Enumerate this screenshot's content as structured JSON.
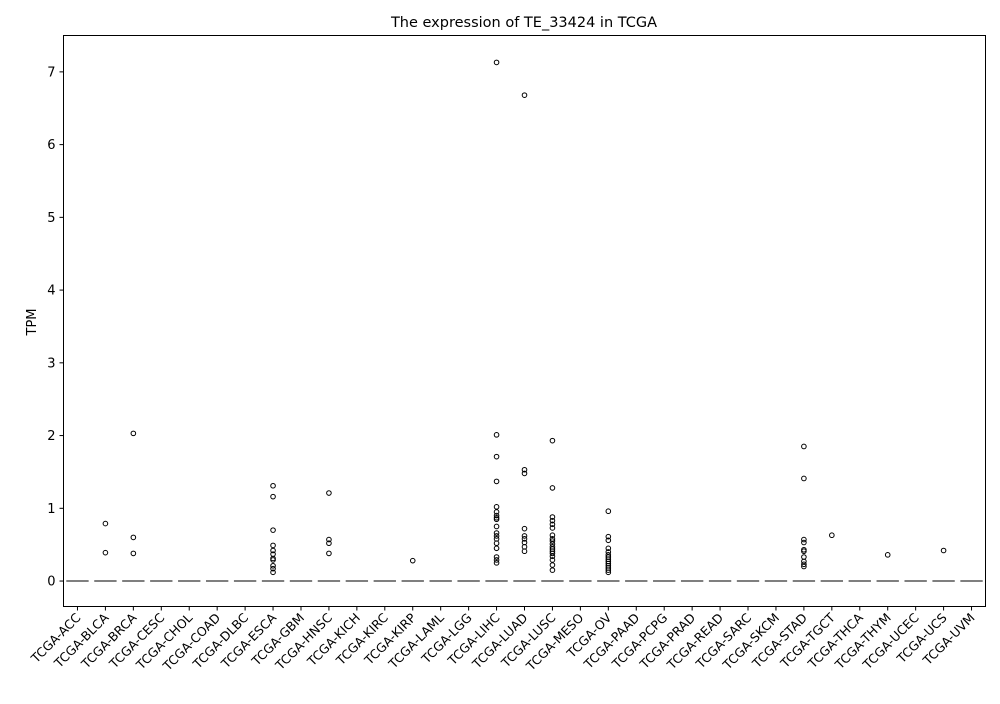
{
  "chart_data": {
    "type": "box",
    "title": "The expression of TE_33424 in TCGA",
    "xlabel": "",
    "ylabel": "TPM",
    "ylim": [
      -0.35,
      7.5
    ],
    "yticks": [
      0,
      1,
      2,
      3,
      4,
      5,
      6,
      7
    ],
    "grid": false,
    "legend": "none",
    "categories": [
      "TCGA-ACC",
      "TCGA-BLCA",
      "TCGA-BRCA",
      "TCGA-CESC",
      "TCGA-CHOL",
      "TCGA-COAD",
      "TCGA-DLBC",
      "TCGA-ESCA",
      "TCGA-GBM",
      "TCGA-HNSC",
      "TCGA-KICH",
      "TCGA-KIRC",
      "TCGA-KIRP",
      "TCGA-LAML",
      "TCGA-LGG",
      "TCGA-LIHC",
      "TCGA-LUAD",
      "TCGA-LUSC",
      "TCGA-MESO",
      "TCGA-OV",
      "TCGA-PAAD",
      "TCGA-PCPG",
      "TCGA-PRAD",
      "TCGA-READ",
      "TCGA-SARC",
      "TCGA-SKCM",
      "TCGA-STAD",
      "TCGA-TGCT",
      "TCGA-THCA",
      "TCGA-THYM",
      "TCGA-UCEC",
      "TCGA-UCS",
      "TCGA-UVM"
    ],
    "median": 0,
    "outliers": {
      "TCGA-BLCA": [
        0.79,
        0.39
      ],
      "TCGA-BRCA": [
        2.03,
        0.6,
        0.38
      ],
      "TCGA-ESCA": [
        1.31,
        1.16,
        0.7,
        0.49,
        0.42,
        0.37,
        0.31,
        0.29,
        0.21,
        0.17,
        0.12
      ],
      "TCGA-HNSC": [
        1.21,
        0.57,
        0.52,
        0.38
      ],
      "TCGA-KIRP": [
        0.28
      ],
      "TCGA-LIHC": [
        7.13,
        2.01,
        1.71,
        1.37,
        1.02,
        0.95,
        0.9,
        0.87,
        0.85,
        0.75,
        0.66,
        0.62,
        0.58,
        0.52,
        0.45,
        0.33,
        0.29,
        0.25
      ],
      "TCGA-LUAD": [
        6.68,
        1.53,
        1.48,
        0.72,
        0.62,
        0.58,
        0.53,
        0.47,
        0.41
      ],
      "TCGA-LUSC": [
        1.93,
        1.28,
        0.88,
        0.83,
        0.78,
        0.73,
        0.63,
        0.58,
        0.55,
        0.51,
        0.47,
        0.44,
        0.41,
        0.38,
        0.34,
        0.29,
        0.22,
        0.15
      ],
      "TCGA-OV": [
        0.96,
        0.61,
        0.56,
        0.45,
        0.4,
        0.36,
        0.33,
        0.3,
        0.27,
        0.24,
        0.21,
        0.18,
        0.15,
        0.12
      ],
      "TCGA-STAD": [
        1.85,
        1.41,
        0.57,
        0.53,
        0.43,
        0.41,
        0.33,
        0.27,
        0.23,
        0.2
      ],
      "TCGA-TGCT": [
        0.63
      ],
      "TCGA-THYM": [
        0.36
      ],
      "TCGA-UCS": [
        0.42
      ]
    }
  }
}
